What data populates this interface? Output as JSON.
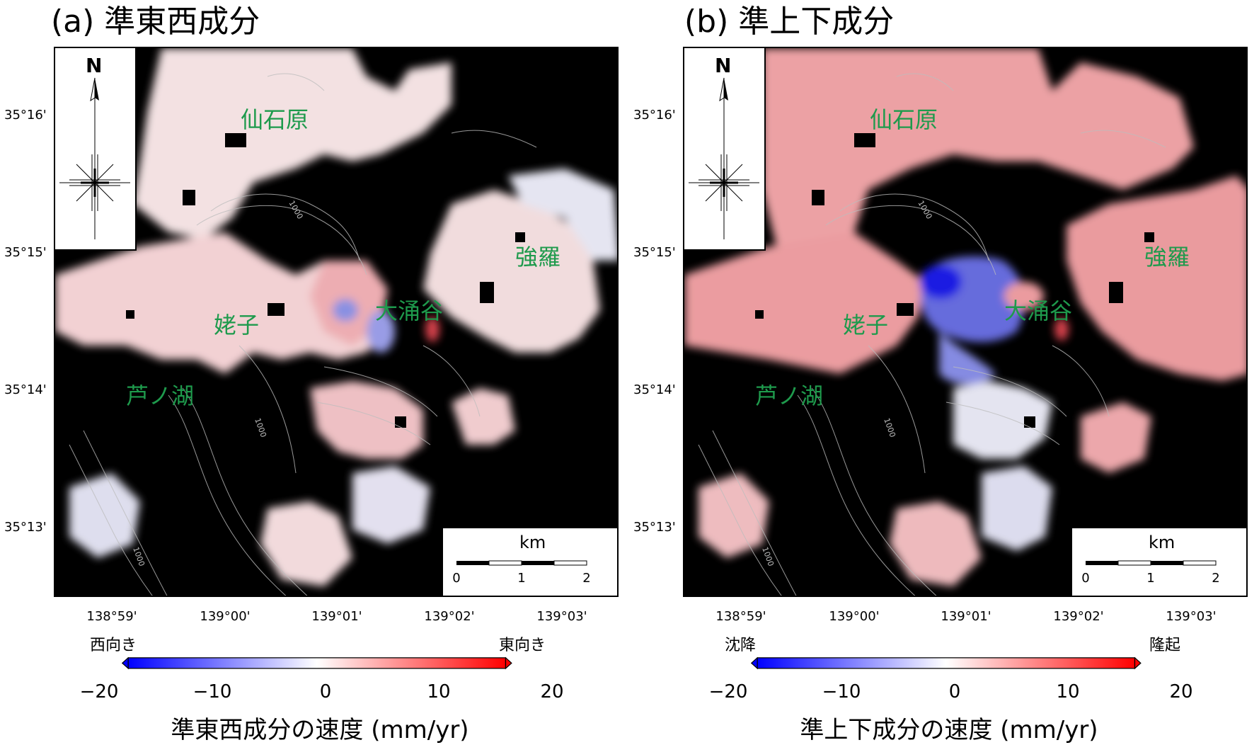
{
  "panels": [
    {
      "title": "(a) 準東西成分",
      "lat_labels": [
        "35°16'",
        "35°15'",
        "35°14'",
        "35°13'"
      ],
      "lon_labels": [
        "138°59'",
        "139°00'",
        "139°01'",
        "139°02'",
        "139°03'"
      ],
      "places": [
        "仙石原",
        "強羅",
        "大涌谷",
        "姥子",
        "芦ノ湖"
      ],
      "contour_labels": [
        "1000",
        "1000",
        "1000"
      ],
      "north": "N",
      "scale": {
        "unit": "km",
        "labels": [
          "0",
          "1",
          "2"
        ]
      },
      "colorbar": {
        "left_label": "西向き",
        "right_label": "東向き",
        "ticks": [
          "−20",
          "−10",
          "0",
          "10",
          "20"
        ],
        "title": "準東西成分の速度 (mm/yr)",
        "min_color": "#0000ff",
        "mid_color": "#ffffff",
        "max_color": "#ff0000"
      }
    },
    {
      "title": "(b) 準上下成分",
      "lat_labels": [
        "35°16'",
        "35°15'",
        "35°14'",
        "35°13'"
      ],
      "lon_labels": [
        "138°59'",
        "139°00'",
        "139°01'",
        "139°02'",
        "139°03'"
      ],
      "places": [
        "仙石原",
        "強羅",
        "大涌谷",
        "姥子",
        "芦ノ湖"
      ],
      "contour_labels": [
        "1000",
        "1000",
        "1000"
      ],
      "north": "N",
      "scale": {
        "unit": "km",
        "labels": [
          "0",
          "1",
          "2"
        ]
      },
      "colorbar": {
        "left_label": "沈降",
        "right_label": "隆起",
        "ticks": [
          "−20",
          "−10",
          "0",
          "10",
          "20"
        ],
        "title": "準上下成分の速度 (mm/yr)",
        "min_color": "#0000ff",
        "mid_color": "#ffffff",
        "max_color": "#ff0000"
      }
    }
  ]
}
